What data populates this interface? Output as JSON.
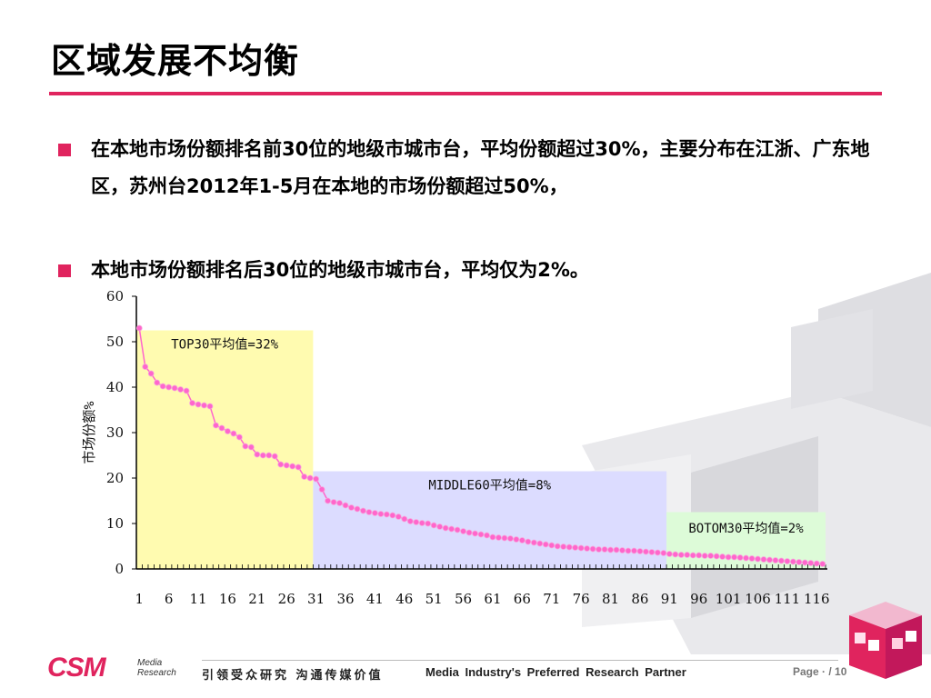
{
  "slide": {
    "title": "区域发展不均衡",
    "bullets": [
      "在本地市场份额排名前30位的地级市城市台，平均份额超过30%，主要分布在江浙、广东地区，苏州台2012年1-5月在本地的市场份额超过50%，",
      "本地市场份额排名后30位的地级市城市台，平均仅为2%。"
    ]
  },
  "footer": {
    "logo": "CSM",
    "logo_sub_1": "Media",
    "logo_sub_2": "Research",
    "slogan_cn": "引领受众研究 沟通传媒价值",
    "slogan_en": "Media Industry's Preferred Research Partner",
    "page": "Page · / 10"
  },
  "colors": {
    "accent": "#e0245e",
    "series": "#ff66cc",
    "band_top": "#fffbb0",
    "band_middle": "#dcdcff",
    "band_bottom": "#ddfbd8"
  },
  "chart_data": {
    "type": "line",
    "ylabel": "市场份额%",
    "xlabel": "",
    "ylim": [
      0,
      60
    ],
    "yticks": [
      0,
      10,
      20,
      30,
      40,
      50,
      60
    ],
    "xtick_labels": [
      "1",
      "6",
      "11",
      "16",
      "21",
      "26",
      "31",
      "36",
      "41",
      "46",
      "51",
      "56",
      "61",
      "66",
      "71",
      "76",
      "81",
      "86",
      "91",
      "96",
      "101",
      "106",
      "111",
      "116"
    ],
    "bands": [
      {
        "label": "TOP30平均值=32%",
        "from": 1,
        "to": 30,
        "avg": 32
      },
      {
        "label": "MIDDLE60平均值=8%",
        "from": 31,
        "to": 90,
        "avg": 8
      },
      {
        "label": "BOTOM30平均值=2%",
        "from": 91,
        "to": 117,
        "avg": 2
      }
    ],
    "x": [
      1,
      2,
      3,
      4,
      5,
      6,
      7,
      8,
      9,
      10,
      11,
      12,
      13,
      14,
      15,
      16,
      17,
      18,
      19,
      20,
      21,
      22,
      23,
      24,
      25,
      26,
      27,
      28,
      29,
      30,
      31,
      32,
      33,
      34,
      35,
      36,
      37,
      38,
      39,
      40,
      41,
      42,
      43,
      44,
      45,
      46,
      47,
      48,
      49,
      50,
      51,
      52,
      53,
      54,
      55,
      56,
      57,
      58,
      59,
      60,
      61,
      62,
      63,
      64,
      65,
      66,
      67,
      68,
      69,
      70,
      71,
      72,
      73,
      74,
      75,
      76,
      77,
      78,
      79,
      80,
      81,
      82,
      83,
      84,
      85,
      86,
      87,
      88,
      89,
      90,
      91,
      92,
      93,
      94,
      95,
      96,
      97,
      98,
      99,
      100,
      101,
      102,
      103,
      104,
      105,
      106,
      107,
      108,
      109,
      110,
      111,
      112,
      113,
      114,
      115,
      116,
      117
    ],
    "values": [
      53,
      44.5,
      43,
      41,
      40.2,
      40,
      39.8,
      39.5,
      39.2,
      36.5,
      36.2,
      36,
      35.8,
      31.6,
      31,
      30.3,
      29.8,
      29,
      27,
      26.8,
      25.2,
      25,
      25,
      24.8,
      23,
      22.8,
      22.6,
      22.4,
      20.3,
      20,
      19.8,
      17.5,
      15,
      14.7,
      14.5,
      14,
      13.5,
      13.2,
      12.8,
      12.5,
      12.3,
      12.1,
      12,
      11.8,
      11.5,
      11,
      10.5,
      10.3,
      10.1,
      10,
      9.6,
      9.3,
      9,
      8.8,
      8.6,
      8.3,
      8,
      7.8,
      7.6,
      7.4,
      7,
      6.9,
      6.8,
      6.7,
      6.5,
      6.3,
      6,
      5.8,
      5.6,
      5.4,
      5.2,
      5,
      4.9,
      4.8,
      4.7,
      4.6,
      4.5,
      4.4,
      4.3,
      4.3,
      4.2,
      4.2,
      4.1,
      4,
      4,
      3.9,
      3.8,
      3.7,
      3.6,
      3.5,
      3.3,
      3.2,
      3.1,
      3.1,
      3,
      3,
      2.9,
      2.9,
      2.8,
      2.7,
      2.6,
      2.6,
      2.5,
      2.4,
      2.3,
      2.2,
      2.1,
      2,
      1.9,
      1.8,
      1.7,
      1.6,
      1.5,
      1.4,
      1.3,
      1.2,
      1.1
    ]
  }
}
